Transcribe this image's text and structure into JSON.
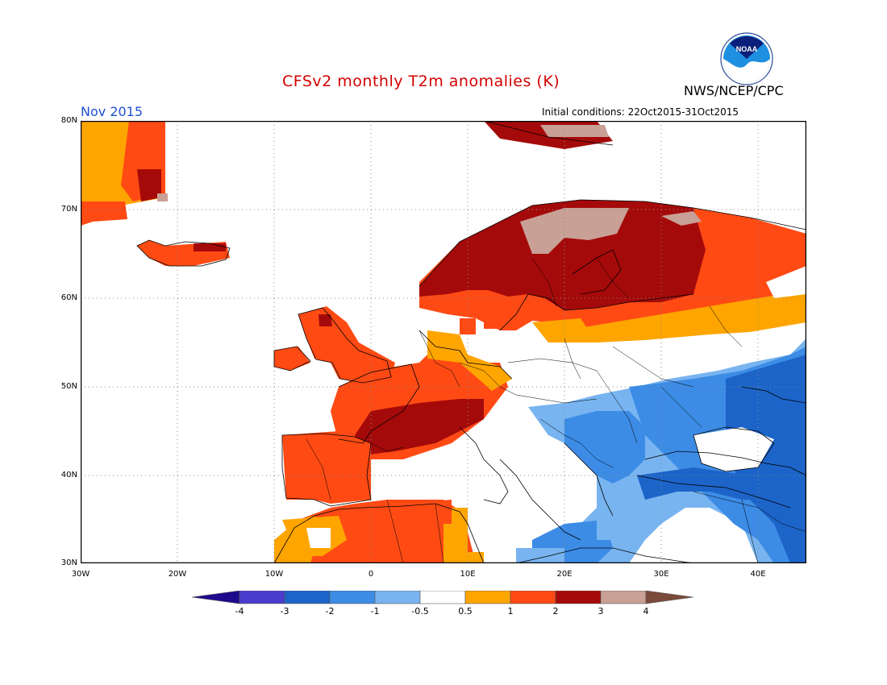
{
  "header": {
    "title": "CFSv2 monthly T2m anomalies (K)",
    "agency": "NWS/NCEP/CPC",
    "month": "Nov 2015",
    "initial_conditions": "Initial conditions: 22Oct2015-31Oct2015",
    "logo_text": "NOAA"
  },
  "axes": {
    "lat_ticks": [
      "80N",
      "70N",
      "60N",
      "50N",
      "40N",
      "30N"
    ],
    "lon_ticks": [
      "30W",
      "20W",
      "10W",
      "0",
      "10E",
      "20E",
      "30E",
      "40E"
    ]
  },
  "colorbar": {
    "labels": [
      "-4",
      "-3",
      "-2",
      "-1",
      "-0.5",
      "0.5",
      "1",
      "2",
      "3",
      "4"
    ],
    "colors": {
      "lt_-4": "#1e0a8c",
      "-4_-3": "#4a3ccc",
      "-3_-2": "#1c64c8",
      "-2_-1": "#3c8ce6",
      "-1_-0.5": "#78b4f0",
      "-0.5_0.5": "#ffffff",
      "0.5_1": "#ffa500",
      "1_2": "#ff4a14",
      "2_3": "#a50a0a",
      "3_4": "#c8a096",
      "gt_4": "#7a4a3a"
    }
  },
  "map_data": {
    "region": "Europe",
    "lon_range": [
      "30W",
      "45E"
    ],
    "lat_range": [
      "30N",
      "80N"
    ],
    "anomaly_regions": [
      {
        "area": "Greenland / Svalbard",
        "class": "2_3"
      },
      {
        "area": "Fennoscandia",
        "class": "2_3"
      },
      {
        "area": "Northern Scandinavia",
        "class": "3_4"
      },
      {
        "area": "Iceland",
        "class": "1_2"
      },
      {
        "area": "British Isles",
        "class": "1_2"
      },
      {
        "area": "France",
        "class": "1_2"
      },
      {
        "area": "Southern France / Alps",
        "class": "2_3"
      },
      {
        "area": "Iberian Peninsula",
        "class": "1_2"
      },
      {
        "area": "North Africa",
        "class": "1_2"
      },
      {
        "area": "Central Europe",
        "class": "-0.5_0.5"
      },
      {
        "area": "Baltic",
        "class": "0.5_1"
      },
      {
        "area": "Northwestern Russia",
        "class": "1_2"
      },
      {
        "area": "Balkans",
        "class": "-1_-0.5"
      },
      {
        "area": "Turkey",
        "class": "-2_-1"
      },
      {
        "area": "Southern Russia / Ukraine",
        "class": "-2_-1"
      },
      {
        "area": "Eastern Mediterranean",
        "class": "-1_-0.5"
      }
    ]
  }
}
